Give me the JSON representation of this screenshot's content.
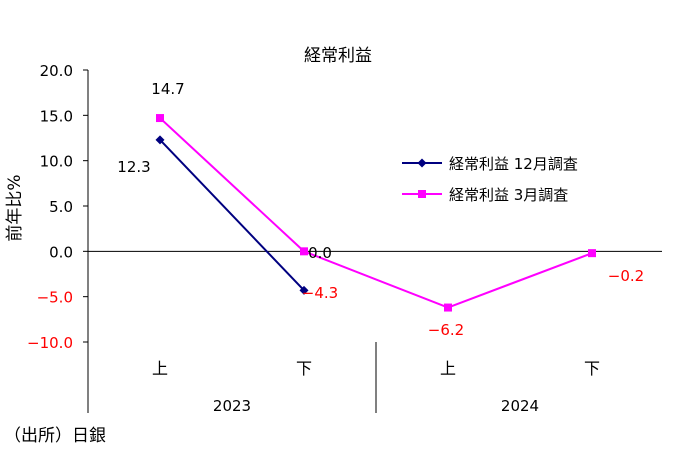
{
  "chart_data": {
    "type": "line",
    "title": "経常利益",
    "ylabel": "前年比%",
    "ylim": [
      -10,
      20
    ],
    "yticks": [
      {
        "value": 20,
        "label": "20.0"
      },
      {
        "value": 15,
        "label": "15.0"
      },
      {
        "value": 10,
        "label": "10.0"
      },
      {
        "value": 5,
        "label": "5.0"
      },
      {
        "value": 0,
        "label": "0.0"
      },
      {
        "value": -5,
        "label": "−5.0"
      },
      {
        "value": -10,
        "label": "−10.0"
      }
    ],
    "categories": [
      "上",
      "下",
      "上",
      "下"
    ],
    "years": [
      "2023",
      "2024"
    ],
    "series": [
      {
        "name": "経常利益 12月調査",
        "color": "#000080",
        "marker": "diamond",
        "values": [
          12.3,
          -4.3,
          null,
          null
        ],
        "labels": [
          "12.3",
          "−4.3",
          "",
          ""
        ]
      },
      {
        "name": "経常利益 3月調査",
        "color": "#ff00ff",
        "marker": "square",
        "values": [
          14.7,
          0.0,
          -6.2,
          -0.2
        ],
        "labels": [
          "14.7",
          "0.0",
          "−6.2",
          "−0.2"
        ]
      }
    ],
    "legend_position": "right"
  },
  "source": "（出所）日銀"
}
